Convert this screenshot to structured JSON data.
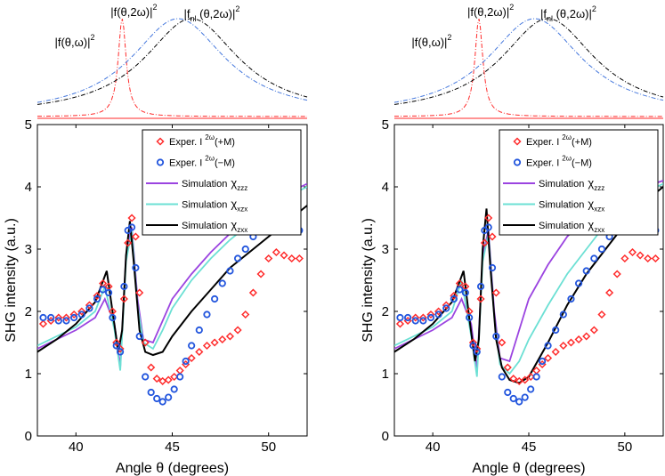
{
  "chart_data": [
    {
      "type": "line",
      "panel": "left",
      "xlabel": "Angle  θ (degrees)",
      "ylabel": "SHG intensity (a.u.)",
      "xlim": [
        38,
        52
      ],
      "ylim": [
        0,
        5
      ],
      "xticks": [
        40,
        45,
        50
      ],
      "yticks": [
        0,
        1,
        2,
        3,
        4,
        5
      ],
      "legend_position": "top-right",
      "legend": [
        {
          "label": "Exper. I ²ᵚ(+M)",
          "label_main": "Exper. I",
          "label_sup": "2ω",
          "label_tail": "(+M)",
          "marker": "diamond",
          "color": "#ff2a2a"
        },
        {
          "label": "Exper. I ²ᵚ(−M)",
          "label_main": "Exper. I",
          "label_sup": "2ω",
          "label_tail": "(−M)",
          "marker": "circle",
          "color": "#2255dd"
        },
        {
          "label": "Simulation χzzz",
          "label_main": "Simulation",
          "label_chi": "χ",
          "label_sub": "zzz",
          "color": "#9b44e0"
        },
        {
          "label": "Simulation χxzx",
          "label_main": "Simulation",
          "label_chi": "χ",
          "label_sub": "xzx",
          "color": "#6ce0d4"
        },
        {
          "label": "Simulation χzxx",
          "label_main": "Simulation",
          "label_chi": "χ",
          "label_sub": "zxx",
          "color": "#000000"
        }
      ],
      "series": [
        {
          "name": "Exper. +M",
          "style": "diamond",
          "color": "#ff2a2a",
          "x": [
            38.3,
            38.7,
            39.1,
            39.5,
            39.9,
            40.3,
            40.7,
            41.1,
            41.4,
            41.7,
            41.9,
            42.1,
            42.3,
            42.5,
            42.7,
            42.9,
            43.1,
            43.3,
            43.6,
            43.9,
            44.2,
            44.5,
            44.8,
            45.1,
            45.4,
            45.7,
            46.0,
            46.4,
            46.8,
            47.2,
            47.6,
            48.0,
            48.4,
            48.8,
            49.2,
            49.6,
            50.0,
            50.4,
            50.8,
            51.2,
            51.6
          ],
          "y": [
            1.8,
            1.85,
            1.9,
            1.9,
            1.95,
            2.0,
            2.1,
            2.25,
            2.45,
            2.4,
            2.0,
            1.5,
            1.4,
            2.2,
            3.1,
            3.5,
            3.2,
            2.3,
            1.5,
            1.1,
            0.92,
            0.88,
            0.9,
            0.95,
            1.05,
            1.15,
            1.25,
            1.35,
            1.45,
            1.5,
            1.55,
            1.6,
            1.7,
            1.95,
            2.3,
            2.6,
            2.85,
            2.95,
            2.9,
            2.85,
            2.85
          ]
        },
        {
          "name": "Exper. −M",
          "style": "circle",
          "color": "#2255dd",
          "x": [
            38.3,
            38.7,
            39.1,
            39.5,
            39.9,
            40.3,
            40.7,
            41.1,
            41.4,
            41.7,
            41.9,
            42.1,
            42.3,
            42.5,
            42.7,
            42.9,
            43.1,
            43.3,
            43.6,
            43.9,
            44.2,
            44.5,
            44.8,
            45.1,
            45.4,
            45.7,
            46.0,
            46.4,
            46.8,
            47.2,
            47.6,
            48.0,
            48.4,
            48.8,
            49.2,
            49.6,
            50.0,
            50.4,
            50.8,
            51.2,
            51.6
          ],
          "y": [
            1.9,
            1.9,
            1.85,
            1.85,
            1.9,
            1.95,
            2.05,
            2.2,
            2.35,
            2.3,
            1.9,
            1.45,
            1.35,
            2.4,
            3.3,
            3.35,
            2.7,
            1.6,
            0.95,
            0.7,
            0.6,
            0.55,
            0.62,
            0.75,
            0.95,
            1.2,
            1.45,
            1.7,
            1.95,
            2.2,
            2.45,
            2.65,
            2.85,
            3.0,
            3.2,
            3.35,
            3.45,
            3.5,
            3.45,
            3.35,
            3.3
          ]
        },
        {
          "name": "Simulation χzzz",
          "style": "line",
          "color": "#9b44e0",
          "x": [
            38.0,
            39,
            40,
            41,
            41.5,
            42,
            42.3,
            42.6,
            42.9,
            43.2,
            43.5,
            44,
            44.5,
            45,
            46,
            47,
            48,
            49,
            50,
            51,
            52
          ],
          "y": [
            1.4,
            1.55,
            1.7,
            1.9,
            2.2,
            1.8,
            1.1,
            2.9,
            3.35,
            2.2,
            1.55,
            1.5,
            1.85,
            2.2,
            2.6,
            2.95,
            3.25,
            3.5,
            3.7,
            3.9,
            4.05
          ]
        },
        {
          "name": "Simulation χxzx",
          "style": "line",
          "color": "#6ce0d4",
          "x": [
            38.0,
            39,
            40,
            41,
            41.5,
            42,
            42.3,
            42.6,
            42.9,
            43.2,
            43.5,
            44,
            44.5,
            45,
            46,
            47,
            48,
            49,
            50,
            51,
            52
          ],
          "y": [
            1.45,
            1.6,
            1.75,
            2.0,
            2.4,
            1.7,
            1.05,
            2.8,
            3.3,
            2.1,
            1.5,
            1.4,
            1.7,
            2.05,
            2.5,
            2.85,
            3.15,
            3.4,
            3.65,
            3.85,
            4.0
          ]
        },
        {
          "name": "Simulation χzxx",
          "style": "line",
          "color": "#000000",
          "x": [
            38.0,
            39,
            40,
            41,
            41.3,
            41.6,
            41.9,
            42.2,
            42.4,
            42.6,
            42.8,
            43.0,
            43.3,
            43.6,
            44,
            44.5,
            45,
            46,
            47,
            48,
            49,
            50,
            51,
            52
          ],
          "y": [
            1.35,
            1.55,
            1.8,
            2.15,
            2.4,
            2.65,
            2.0,
            1.35,
            1.7,
            2.9,
            3.45,
            2.8,
            1.7,
            1.35,
            1.3,
            1.35,
            1.6,
            2.0,
            2.35,
            2.7,
            2.95,
            3.2,
            3.45,
            3.7
          ]
        }
      ]
    },
    {
      "type": "line",
      "panel": "right",
      "xlabel": "Angle  θ (degrees)",
      "ylabel": "SHG intensity (a.u.)",
      "xlim": [
        38,
        52
      ],
      "ylim": [
        0,
        5
      ],
      "xticks": [
        40,
        45,
        50
      ],
      "yticks": [
        0,
        1,
        2,
        3,
        4,
        5
      ],
      "legend_position": "top-right",
      "legend": [
        {
          "label": "Exper. I ²ᵚ(+M)",
          "label_main": "Exper. I",
          "label_sup": "2ω",
          "label_tail": "(+M)",
          "marker": "diamond",
          "color": "#ff2a2a"
        },
        {
          "label": "Exper. I ²ᵚ(−M)",
          "label_main": "Exper. I",
          "label_sup": "2ω",
          "label_tail": "(−M)",
          "marker": "circle",
          "color": "#2255dd"
        },
        {
          "label": "Simulation χzzz",
          "label_main": "Simulation",
          "label_chi": "χ",
          "label_sub": "zzz",
          "color": "#9b44e0"
        },
        {
          "label": "Simulation χxzx",
          "label_main": "Simulation",
          "label_chi": "χ",
          "label_sub": "xzx",
          "color": "#6ce0d4"
        },
        {
          "label": "Simulation χzxx",
          "label_main": "Simulation",
          "label_chi": "χ",
          "label_sub": "zxx",
          "color": "#000000"
        }
      ],
      "series": [
        {
          "name": "Exper. +M",
          "style": "diamond",
          "color": "#ff2a2a",
          "x": [
            38.3,
            38.7,
            39.1,
            39.5,
            39.9,
            40.3,
            40.7,
            41.1,
            41.4,
            41.7,
            41.9,
            42.1,
            42.3,
            42.5,
            42.7,
            42.9,
            43.1,
            43.3,
            43.6,
            43.9,
            44.2,
            44.5,
            44.8,
            45.1,
            45.4,
            45.7,
            46.0,
            46.4,
            46.8,
            47.2,
            47.6,
            48.0,
            48.4,
            48.8,
            49.2,
            49.6,
            50.0,
            50.4,
            50.8,
            51.2,
            51.6
          ],
          "y": [
            1.8,
            1.85,
            1.9,
            1.9,
            1.95,
            2.0,
            2.1,
            2.25,
            2.45,
            2.4,
            2.0,
            1.5,
            1.4,
            2.2,
            3.1,
            3.5,
            3.2,
            2.3,
            1.5,
            1.1,
            0.92,
            0.88,
            0.9,
            0.95,
            1.05,
            1.15,
            1.25,
            1.35,
            1.45,
            1.5,
            1.55,
            1.6,
            1.7,
            1.95,
            2.3,
            2.6,
            2.85,
            2.95,
            2.9,
            2.85,
            2.85
          ]
        },
        {
          "name": "Exper. −M",
          "style": "circle",
          "color": "#2255dd",
          "x": [
            38.3,
            38.7,
            39.1,
            39.5,
            39.9,
            40.3,
            40.7,
            41.1,
            41.4,
            41.7,
            41.9,
            42.1,
            42.3,
            42.5,
            42.7,
            42.9,
            43.1,
            43.3,
            43.6,
            43.9,
            44.2,
            44.5,
            44.8,
            45.1,
            45.4,
            45.7,
            46.0,
            46.4,
            46.8,
            47.2,
            47.6,
            48.0,
            48.4,
            48.8,
            49.2,
            49.6,
            50.0,
            50.4,
            50.8,
            51.2,
            51.6
          ],
          "y": [
            1.9,
            1.9,
            1.85,
            1.85,
            1.9,
            1.95,
            2.05,
            2.2,
            2.35,
            2.3,
            1.9,
            1.45,
            1.35,
            2.4,
            3.3,
            3.35,
            2.7,
            1.6,
            0.95,
            0.7,
            0.6,
            0.55,
            0.62,
            0.75,
            0.95,
            1.2,
            1.45,
            1.7,
            1.95,
            2.2,
            2.45,
            2.65,
            2.85,
            3.0,
            3.2,
            3.35,
            3.45,
            3.5,
            3.45,
            3.35,
            3.3
          ]
        },
        {
          "name": "Simulation χzzz",
          "style": "line",
          "color": "#9b44e0",
          "x": [
            38.0,
            39,
            40,
            41,
            41.5,
            42,
            42.3,
            42.6,
            42.9,
            43.2,
            43.5,
            44,
            44.5,
            45,
            46,
            47,
            48,
            49,
            50,
            51,
            52
          ],
          "y": [
            1.4,
            1.55,
            1.7,
            1.9,
            2.2,
            1.8,
            1.05,
            2.9,
            3.3,
            2.0,
            1.25,
            1.2,
            1.7,
            2.2,
            2.75,
            3.2,
            3.5,
            3.75,
            3.9,
            4.0,
            4.1
          ]
        },
        {
          "name": "Simulation χxzx",
          "style": "line",
          "color": "#6ce0d4",
          "x": [
            38.0,
            39,
            40,
            41,
            41.5,
            42,
            42.3,
            42.6,
            42.9,
            43.2,
            43.5,
            44,
            44.5,
            45,
            46,
            47,
            48,
            49,
            50,
            51,
            52
          ],
          "y": [
            1.45,
            1.6,
            1.75,
            2.0,
            2.5,
            1.6,
            0.95,
            2.8,
            3.25,
            1.9,
            1.15,
            1.0,
            1.2,
            1.55,
            2.1,
            2.6,
            3.0,
            3.4,
            3.7,
            3.9,
            4.05
          ]
        },
        {
          "name": "Simulation χzxx",
          "style": "line",
          "color": "#000000",
          "x": [
            38.0,
            39,
            40,
            41,
            41.3,
            41.6,
            41.9,
            42.2,
            42.4,
            42.6,
            42.8,
            43.0,
            43.3,
            43.6,
            44,
            44.5,
            45,
            46,
            47,
            48,
            49,
            50,
            51,
            52
          ],
          "y": [
            1.35,
            1.55,
            1.8,
            2.15,
            2.4,
            2.65,
            1.9,
            1.2,
            1.55,
            3.0,
            3.65,
            2.7,
            1.55,
            1.1,
            0.9,
            0.85,
            0.95,
            1.5,
            2.1,
            2.6,
            3.0,
            3.4,
            3.75,
            4.0
          ]
        }
      ]
    }
  ],
  "inset_curves": {
    "labels": [
      {
        "text": "|f(θ,ω)|",
        "sup": "2"
      },
      {
        "text": "|f(θ,2ω)|",
        "sup": "2"
      },
      {
        "text": "|f",
        "sub": "nl",
        "text2": " (θ,2ω)|",
        "sup": "2"
      }
    ],
    "colors": {
      "f_omega": "#ff2a2a",
      "f_2omega": "#4477dd",
      "f_nl": "#000000"
    },
    "peaks": {
      "f_omega": 42.4,
      "f_2omega": 45.3,
      "f_nl": 46.0
    },
    "baseline_color": "#ff2a2a"
  }
}
